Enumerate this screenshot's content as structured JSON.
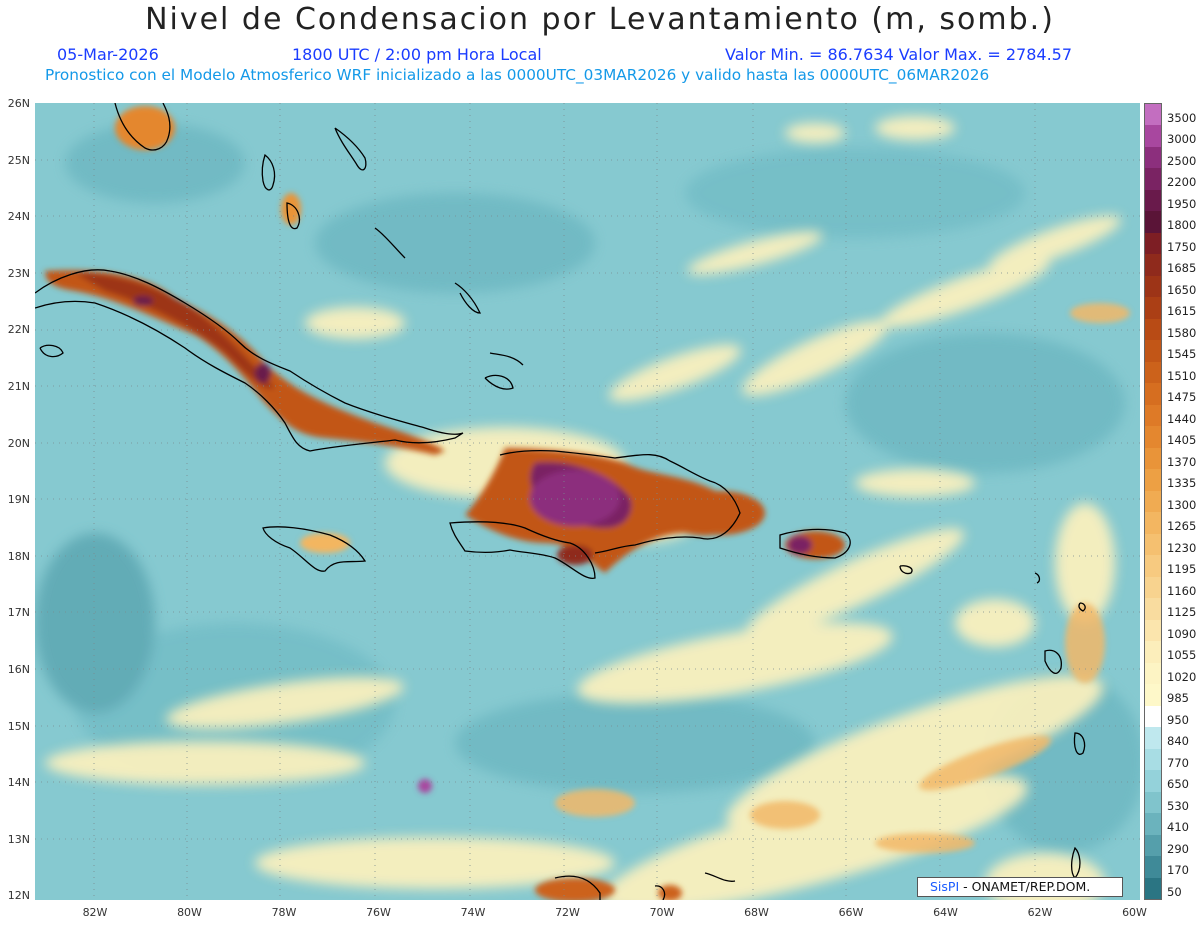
{
  "header": {
    "title": "Nivel de Condensacion por Levantamiento (m, somb.)",
    "date": "05-Mar-2026",
    "time": "1800 UTC / 2:00 pm Hora Local",
    "minmax": "Valor Min. = 86.7634   Valor Max. = 2784.57",
    "model_info": "Pronostico con el Modelo Atmosferico WRF inicializado a las 0000UTC_03MAR2026 y valido hasta las  0000UTC_06MAR2026"
  },
  "map": {
    "extent": {
      "lon_min": -83.2,
      "lon_max": -60,
      "lat_min": 11.8,
      "lat_max": 26.2
    },
    "lat_ticks": [
      "26N",
      "25N",
      "24N",
      "23N",
      "22N",
      "21N",
      "20N",
      "19N",
      "18N",
      "17N",
      "16N",
      "15N",
      "14N",
      "13N",
      "12N"
    ],
    "lon_ticks": [
      "82W",
      "80W",
      "78W",
      "76W",
      "74W",
      "72W",
      "70W",
      "68W",
      "66W",
      "64W",
      "62W",
      "60W"
    ],
    "background_color": "#86c9d0",
    "grid": "dotted"
  },
  "colorbar": {
    "labels": [
      "3500",
      "3000",
      "2500",
      "2200",
      "1950",
      "1800",
      "1750",
      "1685",
      "1650",
      "1615",
      "1580",
      "1545",
      "1510",
      "1475",
      "1440",
      "1405",
      "1370",
      "1335",
      "1300",
      "1265",
      "1230",
      "1195",
      "1160",
      "1125",
      "1090",
      "1055",
      "1020",
      "985",
      "950",
      "840",
      "770",
      "650",
      "530",
      "410",
      "290",
      "170",
      "50"
    ],
    "colors": [
      "#c36ec0",
      "#a8479f",
      "#8c2f7d",
      "#7a2363",
      "#691a4b",
      "#5a1437",
      "#7d1e24",
      "#8f2a1c",
      "#9d3417",
      "#ab3f15",
      "#b84b15",
      "#c25617",
      "#cc621b",
      "#d66e20",
      "#de7a27",
      "#e4872f",
      "#e99439",
      "#eda044",
      "#f0ab52",
      "#f3b661",
      "#f5c070",
      "#f7ca80",
      "#f8d38f",
      "#f9dc9f",
      "#fbe5ad",
      "#fceebb",
      "#fdf4c4",
      "#fef8c9",
      "#ffffff",
      "#bfe8ee",
      "#a8dde4",
      "#94d2da",
      "#80c4cc",
      "#6bb3bd",
      "#559fab",
      "#3f8a98",
      "#2b7583"
    ]
  },
  "credit": {
    "brand": "SisPI",
    "org": " -  ONAMET/REP.DOM."
  }
}
